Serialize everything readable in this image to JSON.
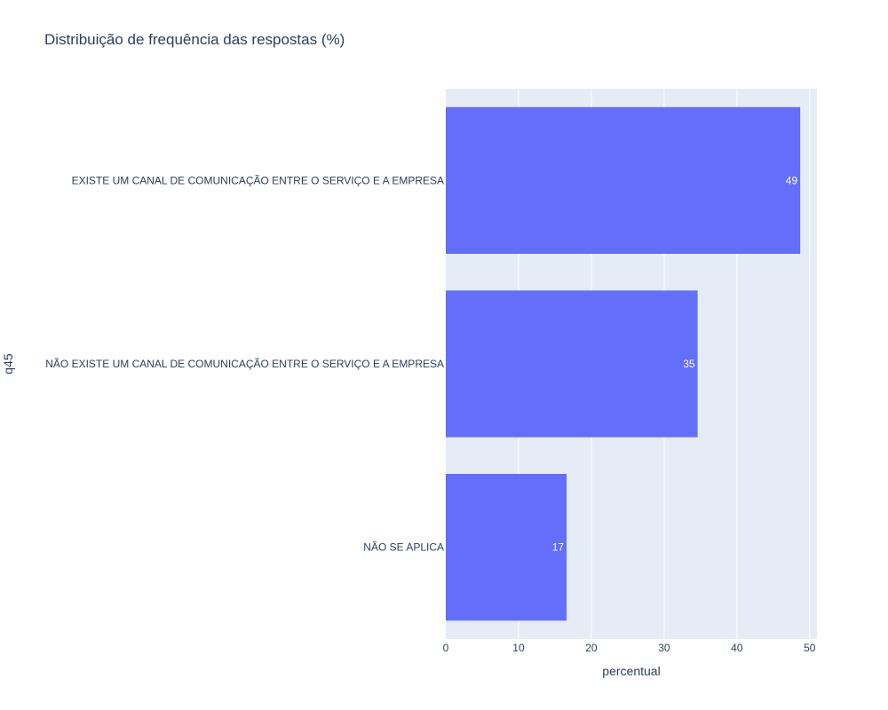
{
  "chart_data": {
    "type": "bar",
    "orientation": "horizontal",
    "title": "Distribuição de frequência das respostas (%)",
    "xlabel": "percentual",
    "ylabel": "q45",
    "categories": [
      "EXISTE UM CANAL DE COMUNICAÇÃO ENTRE O SERVIÇO E A EMPRESA",
      "NÃO EXISTE UM CANAL DE COMUNICAÇÃO ENTRE O SERVIÇO E A EMPRESA",
      "NÃO SE APLICA"
    ],
    "values": [
      48.7,
      34.6,
      16.6
    ],
    "data_labels": [
      "49",
      "35",
      "17"
    ],
    "xlim": [
      0,
      51
    ],
    "xticks": [
      0,
      10,
      20,
      30,
      40,
      50
    ],
    "xtick_labels": [
      "0",
      "10",
      "20",
      "30",
      "40",
      "50"
    ],
    "grid": true,
    "colors": {
      "bar": "#636efa",
      "plot_bg": "#e5ecf6",
      "grid": "#ffffff",
      "text": "#2a3f5f",
      "bar_text": "#ffffff"
    }
  }
}
